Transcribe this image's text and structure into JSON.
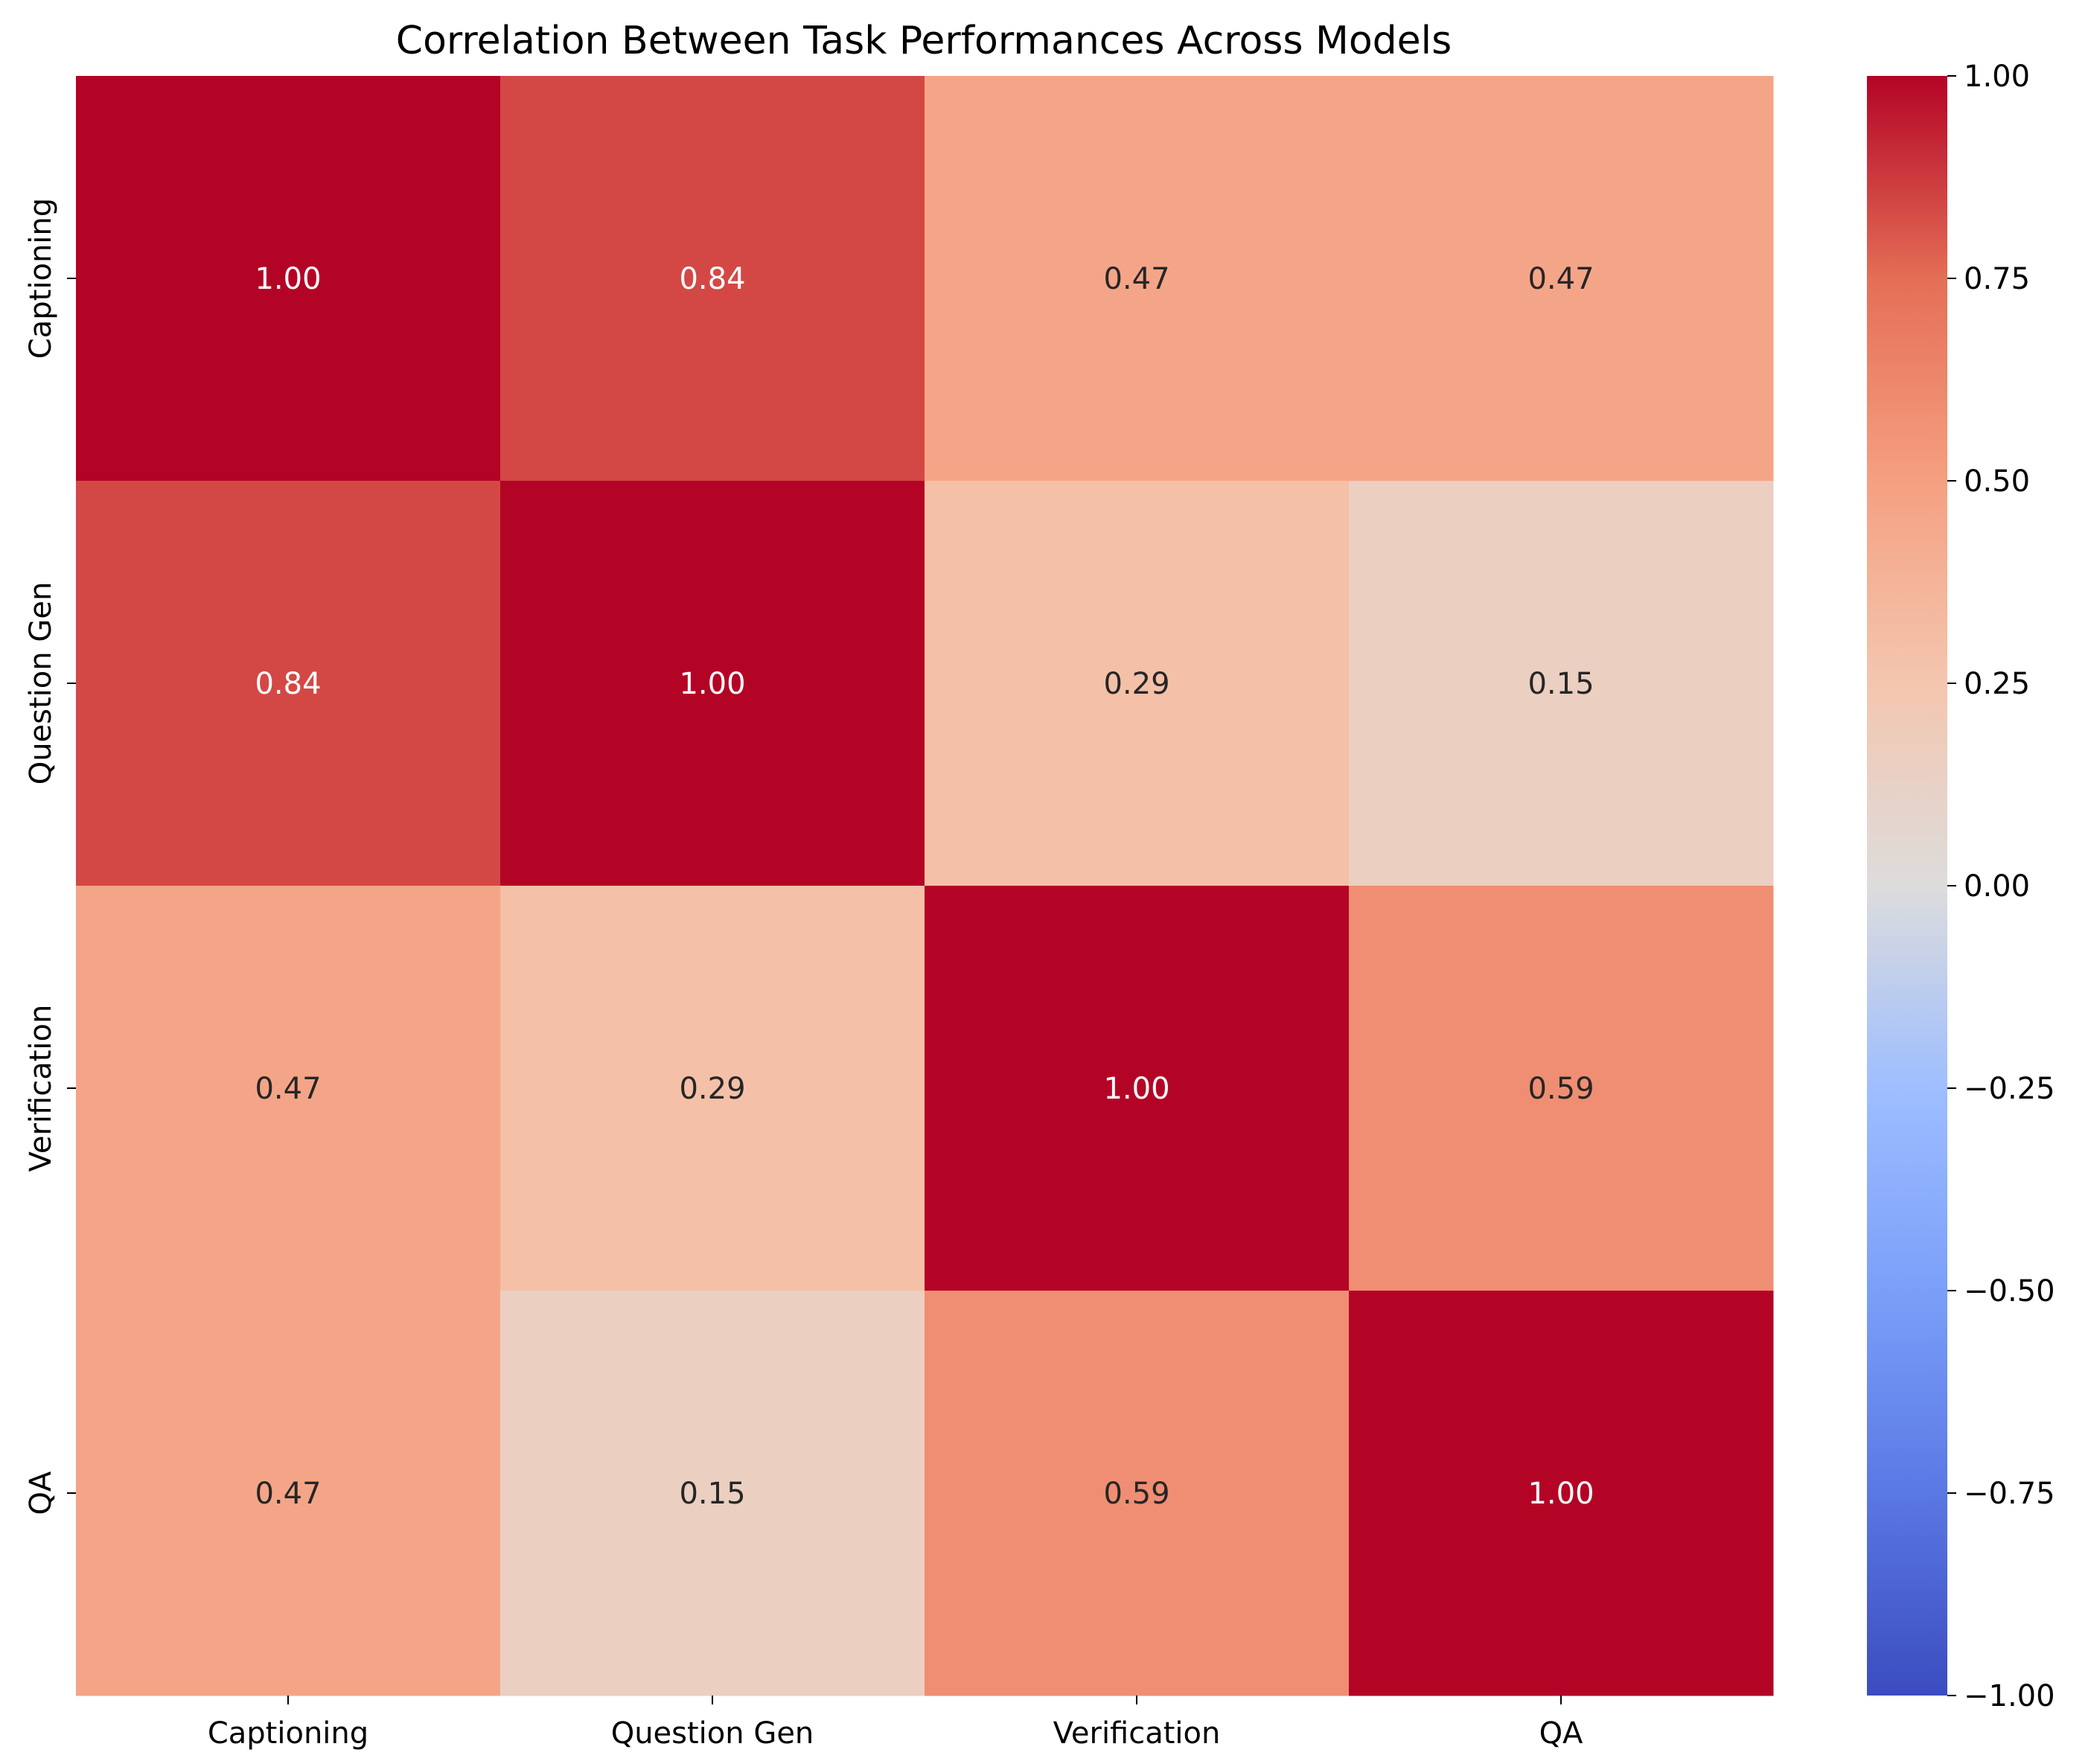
{
  "chart_data": {
    "type": "heatmap",
    "title": "Correlation Between Task Performances Across Models",
    "row_labels": [
      "Captioning",
      "Question Gen",
      "Verification",
      "QA"
    ],
    "col_labels": [
      "Captioning",
      "Question Gen",
      "Verification",
      "QA"
    ],
    "values": [
      [
        1.0,
        0.84,
        0.47,
        0.47
      ],
      [
        0.84,
        1.0,
        0.29,
        0.15
      ],
      [
        0.47,
        0.29,
        1.0,
        0.59
      ],
      [
        0.47,
        0.15,
        0.59,
        1.0
      ]
    ],
    "value_format": "0.00",
    "colormap": "coolwarm",
    "vmin": -1.0,
    "vmax": 1.0,
    "colorbar_ticks": [
      1.0,
      0.75,
      0.5,
      0.25,
      0.0,
      -0.25,
      -0.5,
      -0.75,
      -1.0
    ],
    "colorbar_tick_labels": [
      "1.00",
      "0.75",
      "0.50",
      "0.25",
      "0.00",
      "−0.25",
      "−0.50",
      "−0.75",
      "−1.00"
    ]
  }
}
